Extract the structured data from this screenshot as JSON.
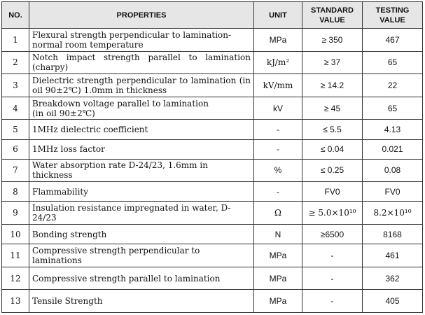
{
  "headers": {
    "no": "NO.",
    "properties": "PROPERTIES",
    "unit": "UNIT",
    "standard": "STANDARD VALUE",
    "testing": "TESTING VALUE"
  },
  "rows": [
    {
      "no": "1",
      "prop1": "Flexural strength perpendicular to lamination-",
      "prop2": "normal room temperature",
      "unit": "MPa",
      "standard": "≥ 350",
      "testing": "467"
    },
    {
      "no": "2",
      "prop1": "Notch impact strength parallel to lamination",
      "prop2": "(charpy)",
      "unit": "kJ/m²",
      "standard": "≥ 37",
      "testing": "65"
    },
    {
      "no": "3",
      "prop1": "Dielectric strength perpendicular to lamination (in",
      "prop2": "oil 90±2℃) 1.0mm in thickness",
      "unit": "kV/mm",
      "standard": "≥ 14.2",
      "testing": "22"
    },
    {
      "no": "4",
      "prop1": "Breakdown voltage parallel to lamination",
      "prop2": "(in oil 90±2℃)",
      "unit": "kV",
      "standard": "≥ 45",
      "testing": "65"
    },
    {
      "no": "5",
      "prop1": "1MHz dielectric coefficient",
      "unit": "-",
      "standard": "≤ 5.5",
      "testing": "4.13"
    },
    {
      "no": "6",
      "prop1": "1MHz loss factor",
      "unit": "-",
      "standard": "≤ 0.04",
      "testing": "0.021"
    },
    {
      "no": "7",
      "prop1": "Water absorption rate D-24/23, 1.6mm in thickness",
      "unit": "%",
      "standard": "≤ 0.25",
      "testing": "0.08"
    },
    {
      "no": "8",
      "prop1": "Flammability",
      "unit": "-",
      "standard": "FV0",
      "testing": "FV0"
    },
    {
      "no": "9",
      "prop1": "Insulation resistance impregnated in water, D-24/23",
      "unit": "Ω",
      "standard": "≥ 5.0×10¹⁰",
      "testing": "8.2×10¹⁰"
    },
    {
      "no": "10",
      "prop1": "Bonding strength",
      "unit": "N",
      "standard": "≥6500",
      "testing": "8168"
    },
    {
      "no": "11",
      "prop1": "Compressive strength perpendicular to laminations",
      "unit": "MPa",
      "standard": "-",
      "testing": "461"
    },
    {
      "no": "12",
      "prop1": "Compressive strength parallel to lamination",
      "unit": "MPa",
      "standard": "-",
      "testing": "362"
    },
    {
      "no": "13",
      "prop1": "Tensile Strength",
      "unit": "MPa",
      "standard": "-",
      "testing": "405"
    }
  ]
}
